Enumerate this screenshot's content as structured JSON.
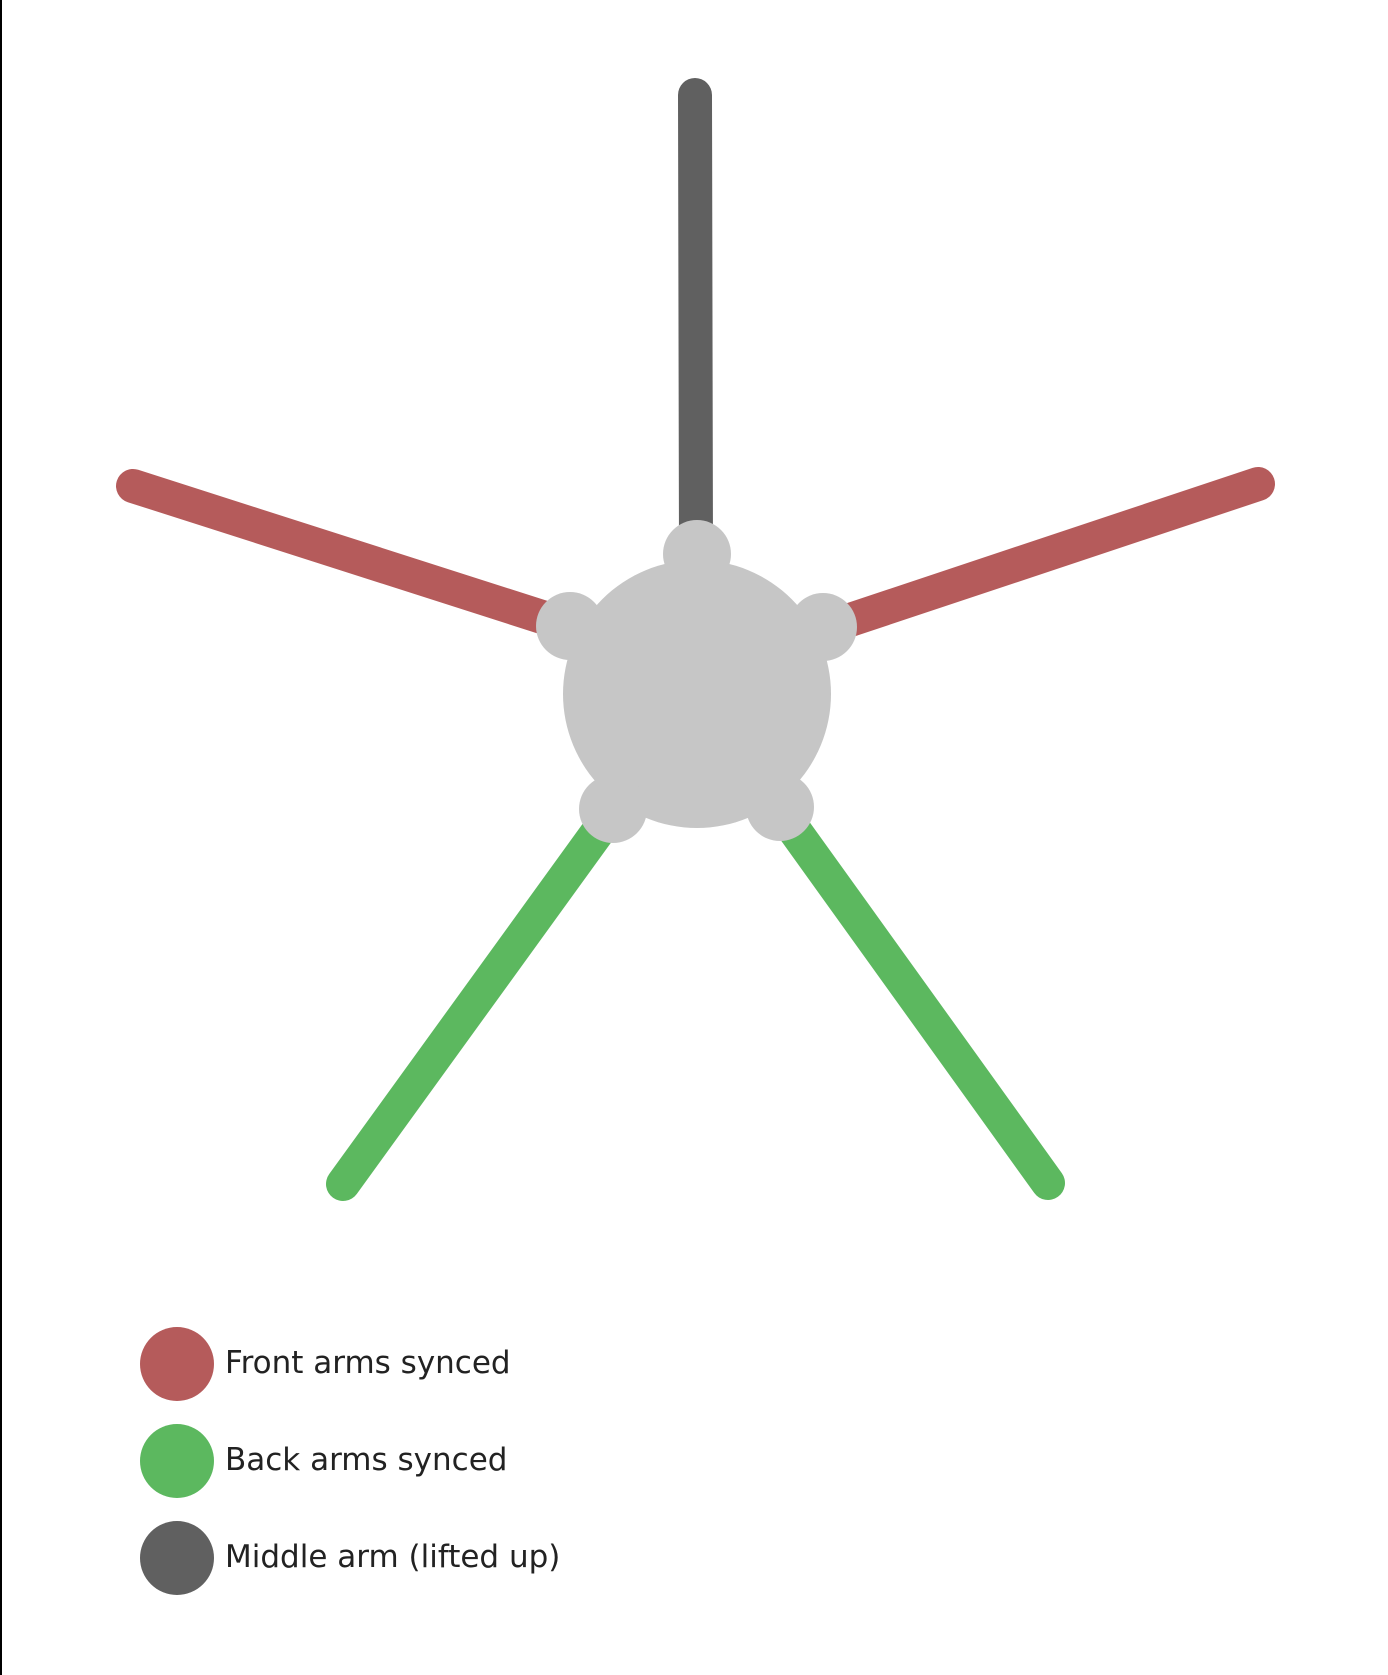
{
  "colors": {
    "front": "#b55b5b",
    "back": "#5cb85f",
    "middle": "#606060",
    "body": "#c6c6c6"
  },
  "arms": [
    {
      "id": "front-left",
      "group": "front"
    },
    {
      "id": "front-right",
      "group": "front"
    },
    {
      "id": "back-left",
      "group": "back"
    },
    {
      "id": "back-right",
      "group": "back"
    },
    {
      "id": "middle",
      "group": "middle"
    }
  ],
  "legend": [
    {
      "group": "front",
      "label": "Front arms synced"
    },
    {
      "group": "back",
      "label": "Back arms synced"
    },
    {
      "group": "middle",
      "label": "Middle arm (lifted up)"
    }
  ]
}
